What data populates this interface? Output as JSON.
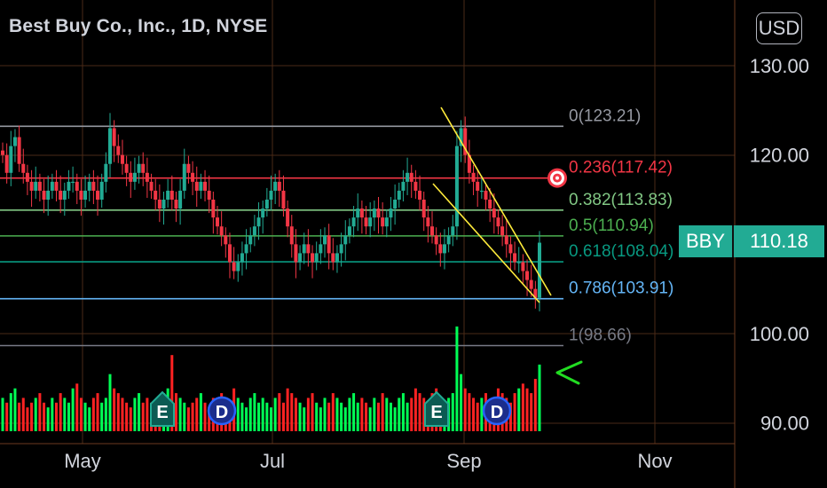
{
  "header": {
    "title": "Best Buy Co., Inc., 1D, NYSE",
    "currency": "USD"
  },
  "price_tag": {
    "symbol": "BBY",
    "value": "110.18"
  },
  "colors": {
    "up": "#22ab94",
    "down": "#f23645",
    "vol_up": "#00ff55",
    "vol_down": "#ff2222",
    "channel": "#ffeb3b",
    "arrow": "#22dd22",
    "grid": "#4a2a17",
    "axis_text": "#d1d4dc"
  },
  "chart_data": {
    "type": "candlestick",
    "title": "Best Buy Co., Inc., 1D, NYSE",
    "y_axis": {
      "ticks": [
        "130.00",
        "120.00",
        "100.00",
        "90.00"
      ],
      "tick_values": [
        130,
        120,
        100,
        90
      ],
      "range": [
        88.5,
        132
      ]
    },
    "x_axis": {
      "ticks": [
        "May",
        "Jul",
        "Sep",
        "Nov"
      ]
    },
    "last_price": 110.18,
    "fib_levels": [
      {
        "ratio": "0",
        "price": 123.21,
        "label": "0(123.21)",
        "color": "#9598a1"
      },
      {
        "ratio": "0.236",
        "price": 117.42,
        "label": "0.236(117.42)",
        "color": "#f23645"
      },
      {
        "ratio": "0.382",
        "price": 113.83,
        "label": "0.382(113.83)",
        "color": "#81c784"
      },
      {
        "ratio": "0.5",
        "price": 110.94,
        "label": "0.5(110.94)",
        "color": "#4caf50"
      },
      {
        "ratio": "0.618",
        "price": 108.04,
        "label": "0.618(108.04)",
        "color": "#089981"
      },
      {
        "ratio": "0.786",
        "price": 103.91,
        "label": "0.786(103.91)",
        "color": "#64b5f6"
      },
      {
        "ratio": "1",
        "price": 98.66,
        "label": "1(98.66)",
        "color": "#787b86"
      }
    ],
    "event_markers": [
      {
        "label": "E",
        "type": "earnings"
      },
      {
        "label": "D",
        "type": "dividend"
      },
      {
        "label": "E",
        "type": "earnings"
      },
      {
        "label": "D",
        "type": "dividend"
      }
    ],
    "closes": [
      120,
      118,
      121,
      122,
      119,
      118,
      117,
      116,
      117,
      116,
      115,
      116,
      117,
      116,
      115,
      116,
      117,
      117,
      116,
      115,
      116,
      117,
      116,
      115,
      117,
      119,
      123,
      121,
      120,
      119,
      118,
      117,
      118,
      119,
      118,
      117,
      116,
      115,
      114,
      115,
      116,
      115,
      114,
      116,
      119,
      118,
      117,
      116,
      117,
      116,
      115,
      113,
      112,
      111,
      110,
      108,
      107,
      108,
      109,
      110,
      111,
      112,
      113,
      114,
      115,
      116,
      117,
      116,
      114,
      112,
      110,
      108,
      109,
      110,
      109,
      108,
      109,
      110,
      111,
      109,
      108,
      109,
      110,
      111,
      112,
      113,
      114,
      113,
      112,
      113,
      114,
      113,
      112,
      113,
      114,
      115,
      116,
      117,
      118,
      117,
      116,
      115,
      113,
      112,
      111,
      110,
      109,
      110,
      111,
      112,
      121,
      123,
      120,
      118,
      117,
      116,
      116,
      115,
      114,
      113,
      112,
      111,
      110,
      109,
      108,
      108,
      107,
      106,
      105,
      104,
      110.18
    ],
    "volumes": [
      7,
      6,
      8,
      9,
      6,
      7,
      5,
      6,
      7,
      8,
      6,
      5,
      7,
      6,
      8,
      7,
      6,
      9,
      10,
      7,
      6,
      5,
      7,
      8,
      6,
      7,
      12,
      9,
      8,
      7,
      6,
      5,
      7,
      8,
      6,
      7,
      6,
      5,
      7,
      8,
      9,
      16,
      8,
      7,
      6,
      5,
      6,
      7,
      8,
      6,
      5,
      7,
      6,
      8,
      7,
      6,
      9,
      7,
      6,
      5,
      7,
      8,
      6,
      7,
      6,
      5,
      7,
      8,
      6,
      9,
      8,
      7,
      6,
      5,
      7,
      8,
      6,
      5,
      7,
      6,
      8,
      7,
      6,
      5,
      7,
      8,
      6,
      7,
      6,
      5,
      7,
      6,
      8,
      7,
      6,
      5,
      7,
      8,
      6,
      7,
      9,
      8,
      7,
      6,
      8,
      9,
      7,
      6,
      7,
      8,
      22,
      12,
      9,
      8,
      7,
      6,
      7,
      8,
      6,
      7,
      9,
      8,
      7,
      6,
      8,
      9,
      10,
      9,
      8,
      11,
      14
    ]
  }
}
